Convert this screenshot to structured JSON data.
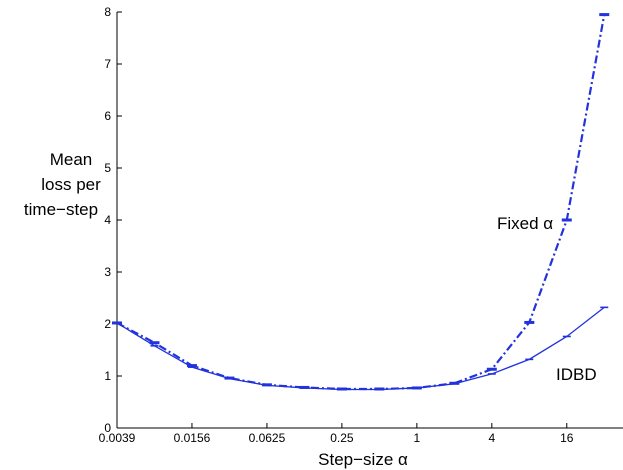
{
  "chart_data": {
    "type": "line",
    "xlabel": "Step−size α",
    "ylabel_lines": [
      "Mean",
      "loss per",
      "time−step"
    ],
    "x_scale": "log2",
    "x_ticks": [
      {
        "value": 0.00390625,
        "label": "0.0039"
      },
      {
        "value": 0.015625,
        "label": "0.0156"
      },
      {
        "value": 0.0625,
        "label": "0.0625"
      },
      {
        "value": 0.25,
        "label": "0.25"
      },
      {
        "value": 1,
        "label": "1"
      },
      {
        "value": 4,
        "label": "4"
      },
      {
        "value": 16,
        "label": "16"
      }
    ],
    "xlim": [
      0.00390625,
      45.25
    ],
    "y_ticks": [
      {
        "value": 0,
        "label": "0"
      },
      {
        "value": 1,
        "label": "1"
      },
      {
        "value": 2,
        "label": "2"
      },
      {
        "value": 3,
        "label": "3"
      },
      {
        "value": 4,
        "label": "4"
      },
      {
        "value": 5,
        "label": "5"
      },
      {
        "value": 6,
        "label": "6"
      },
      {
        "value": 7,
        "label": "7"
      },
      {
        "value": 8,
        "label": "8"
      }
    ],
    "ylim": [
      0,
      8
    ],
    "grid": false,
    "color": "#2233dd",
    "x": [
      0.00390625,
      0.0078125,
      0.015625,
      0.03125,
      0.0625,
      0.125,
      0.25,
      0.5,
      1,
      2,
      4,
      8,
      16,
      32
    ],
    "series": [
      {
        "name": "Fixed α",
        "style": "dash-dot",
        "values": [
          2.02,
          1.64,
          1.2,
          0.96,
          0.83,
          0.78,
          0.75,
          0.75,
          0.77,
          0.86,
          1.13,
          2.03,
          4.0,
          7.95
        ]
      },
      {
        "name": "IDBD",
        "style": "solid",
        "values": [
          2.02,
          1.58,
          1.17,
          0.95,
          0.82,
          0.77,
          0.74,
          0.74,
          0.77,
          0.85,
          1.04,
          1.32,
          1.76,
          2.32
        ]
      }
    ]
  }
}
